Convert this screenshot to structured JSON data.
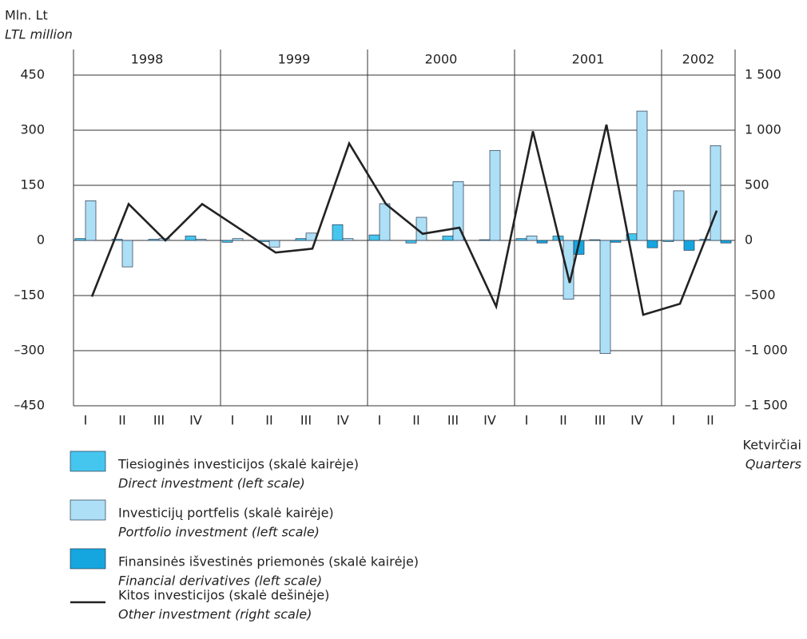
{
  "chart_data": {
    "type": "bar_line",
    "y_label": "Mln. Lt",
    "y_label_en": "LTL million",
    "x_label": "Ketvirčiai",
    "x_label_en": "Quarters",
    "groups": [
      {
        "name": "1998",
        "categories": [
          "I",
          "II",
          "III",
          "IV"
        ]
      },
      {
        "name": "1999",
        "categories": [
          "I",
          "II",
          "III",
          "IV"
        ]
      },
      {
        "name": "2000",
        "categories": [
          "I",
          "II",
          "III",
          "IV"
        ]
      },
      {
        "name": "2001",
        "categories": [
          "I",
          "II",
          "III",
          "IV"
        ]
      },
      {
        "name": "2002",
        "categories": [
          "I",
          "II"
        ]
      }
    ],
    "series": [
      {
        "name": "Tiesioginės investicijos (skalė kairėje)",
        "name_en": "Direct investment (left scale)",
        "color": "#45c6ef",
        "kind": "bar",
        "values": [
          5,
          3,
          3,
          12,
          -5,
          -3,
          5,
          43,
          15,
          -7,
          12,
          2,
          5,
          12,
          2,
          18,
          -3,
          3
        ]
      },
      {
        "name": "Investicijų portfelis (skalė kairėje)",
        "name_en": "Portfolio investment (left scale)",
        "color": "#addff6",
        "kind": "bar",
        "values": [
          108,
          -72,
          5,
          3,
          5,
          -18,
          20,
          5,
          100,
          63,
          160,
          245,
          12,
          -160,
          -308,
          352,
          135,
          258
        ]
      },
      {
        "name": "Finansinės išvestinės priemonės (skalė kairėje)",
        "name_en": "Financial derivatives (left scale)",
        "color": "#16a6df",
        "kind": "bar",
        "values": [
          0,
          0,
          0,
          0,
          0,
          0,
          0,
          0,
          0,
          0,
          0,
          0,
          -7,
          -38,
          -5,
          -20,
          -27,
          -7
        ]
      },
      {
        "name": "Kitos investicijos (skalė dešinėje)",
        "name_en": "Other investment (right scale)",
        "color": "#222222",
        "kind": "line",
        "axis": "y2",
        "values": [
          -510,
          330,
          0,
          330,
          110,
          -110,
          -75,
          880,
          330,
          60,
          115,
          -600,
          990,
          -385,
          1050,
          -675,
          -575,
          270
        ]
      }
    ],
    "ylim": [
      -450,
      450
    ],
    "yticks": [
      {
        "value": -450,
        "label": "–450"
      },
      {
        "value": -300,
        "label": "–300"
      },
      {
        "value": -150,
        "label": "–150"
      },
      0,
      150,
      300,
      450
    ],
    "y2lim": [
      -1500,
      1500
    ],
    "y2ticks": [
      {
        "value": -1500,
        "label": "–1 500"
      },
      {
        "value": -1000,
        "label": "–1 000"
      },
      {
        "value": -500,
        "label": "–500"
      },
      0,
      500,
      {
        "value": 1000,
        "label": "1 000"
      },
      {
        "value": 1500,
        "label": "1 500"
      }
    ],
    "grid": true
  }
}
